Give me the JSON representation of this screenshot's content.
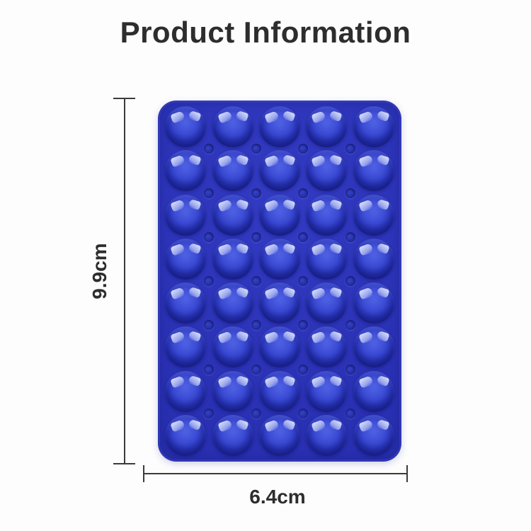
{
  "page": {
    "title": "Product Information"
  },
  "product": {
    "description": "blue-silicone-suction-cup-pad",
    "pad": {
      "rows": 8,
      "columns": 5,
      "suction_cup_count": 40
    }
  },
  "dimensions": {
    "height": "9.9cm",
    "width": "6.4cm"
  },
  "colors": {
    "pad_base": "#2a31b4",
    "cup_dome": "#3a4cd8",
    "cup_highlight": "#dfe5fc",
    "dimension_line": "#3b3b3b",
    "text": "#2d2d2d"
  }
}
